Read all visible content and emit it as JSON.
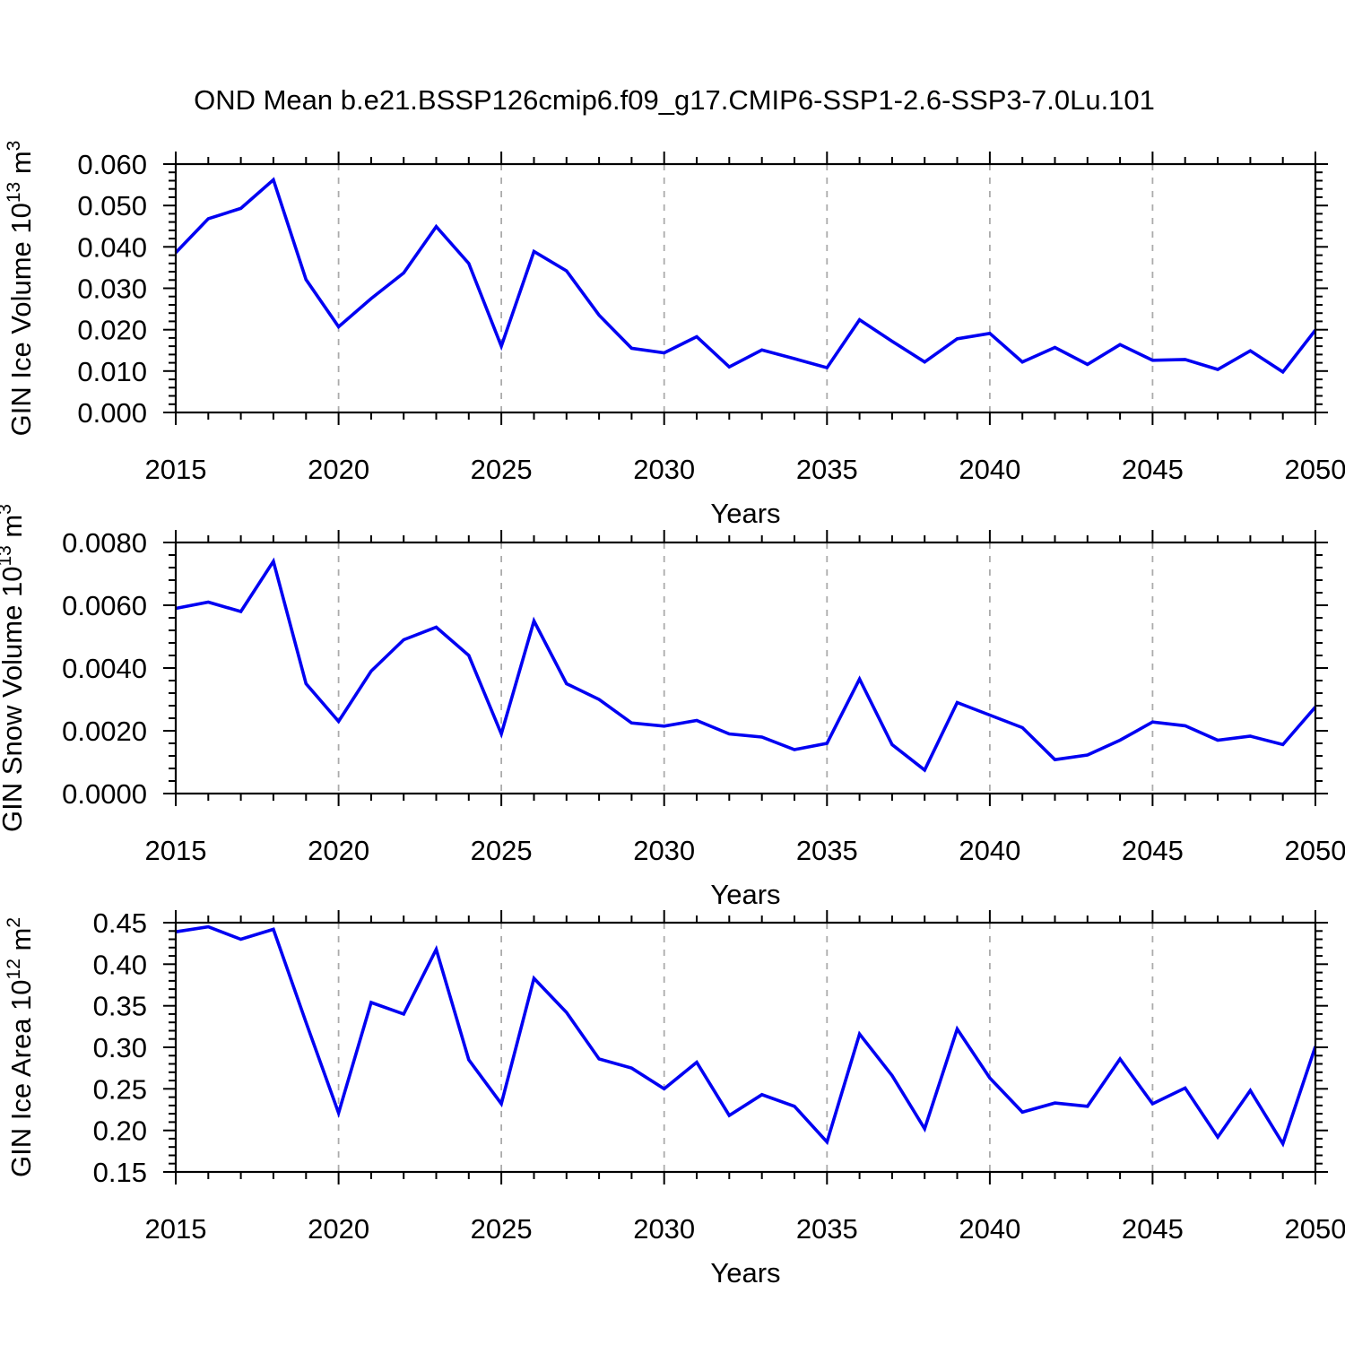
{
  "title": "OND Mean b.e21.BSSP126cmip6.f09_g17.CMIP6-SSP1-2.6-SSP3-7.0Lu.101",
  "chart_data": {
    "type": "line",
    "title": "OND Mean b.e21.BSSP126cmip6.f09_g17.CMIP6-SSP1-2.6-SSP3-7.0Lu.101",
    "xlabel": "Years",
    "legend": "none",
    "grid": "vertical-dashed-only",
    "line_color": "#0000f2",
    "grid_color": "#ababab",
    "axis_color": "#000000",
    "x_range": [
      2015,
      2050
    ],
    "x_major_ticks": [
      2015,
      2020,
      2025,
      2030,
      2035,
      2040,
      2045,
      2050
    ],
    "x_minor_step_years": 1,
    "x_gridline_years": [
      2020,
      2025,
      2030,
      2035,
      2040,
      2045
    ],
    "years": [
      2015,
      2016,
      2017,
      2018,
      2019,
      2020,
      2021,
      2022,
      2023,
      2024,
      2025,
      2026,
      2027,
      2028,
      2029,
      2030,
      2031,
      2032,
      2033,
      2034,
      2035,
      2036,
      2037,
      2038,
      2039,
      2040,
      2041,
      2042,
      2043,
      2044,
      2045,
      2046,
      2047,
      2048,
      2049,
      2050
    ],
    "panels": [
      {
        "name": "gin-ice-volume",
        "ylabel": "GIN Ice Volume 10^13 m^3",
        "ylabel_parts": [
          {
            "t": "GIN Ice Volume 10"
          },
          {
            "t": "13",
            "sup": true
          },
          {
            "t": " m"
          },
          {
            "t": "3",
            "sup": true
          }
        ],
        "ylim": [
          0,
          0.06
        ],
        "y_top_tick": 0.06,
        "y_tick_step": 0.01,
        "y_minor_step": 0.002,
        "decimals": 3,
        "values": [
          0.0386,
          0.0468,
          0.0493,
          0.0562,
          0.0321,
          0.0207,
          0.0275,
          0.0337,
          0.0449,
          0.036,
          0.016,
          0.0389,
          0.0342,
          0.0235,
          0.0155,
          0.0144,
          0.0183,
          0.011,
          0.0151,
          0.013,
          0.0108,
          0.0224,
          0.0172,
          0.0122,
          0.0178,
          0.0191,
          0.0122,
          0.0157,
          0.0116,
          0.0164,
          0.0126,
          0.0128,
          0.0104,
          0.0149,
          0.0098,
          0.0199
        ]
      },
      {
        "name": "gin-snow-volume",
        "ylabel": "GIN Snow Volume 10^13 m^3",
        "ylabel_parts": [
          {
            "t": "GIN Snow Volume 10"
          },
          {
            "t": "13",
            "sup": true
          },
          {
            "t": " m"
          },
          {
            "t": "3",
            "sup": true
          }
        ],
        "ylim": [
          0,
          0.008
        ],
        "y_top_tick": 0.008,
        "y_tick_step": 0.002,
        "y_minor_step": 0.0004,
        "decimals": 4,
        "values": [
          0.0059,
          0.0061,
          0.0058,
          0.0074,
          0.0035,
          0.0023,
          0.0039,
          0.0049,
          0.0053,
          0.0044,
          0.0019,
          0.0055,
          0.0035,
          0.003,
          0.00225,
          0.00215,
          0.00233,
          0.0019,
          0.0018,
          0.0014,
          0.0016,
          0.00365,
          0.00156,
          0.00075,
          0.0029,
          0.0025,
          0.0021,
          0.00108,
          0.00123,
          0.0017,
          0.00228,
          0.00216,
          0.0017,
          0.00183,
          0.00156,
          0.00276
        ]
      },
      {
        "name": "gin-ice-area",
        "ylabel": "GIN Ice Area 10^12 m^2",
        "ylabel_parts": [
          {
            "t": "GIN Ice Area 10"
          },
          {
            "t": "12",
            "sup": true
          },
          {
            "t": " m"
          },
          {
            "t": "2",
            "sup": true
          }
        ],
        "ylim": [
          0.15,
          0.45
        ],
        "y_top_tick": 0.45,
        "y_tick_step": 0.05,
        "y_minor_step": 0.01,
        "decimals": 2,
        "values": [
          0.439,
          0.445,
          0.43,
          0.442,
          0.33,
          0.221,
          0.354,
          0.34,
          0.418,
          0.285,
          0.232,
          0.383,
          0.342,
          0.286,
          0.275,
          0.25,
          0.282,
          0.218,
          0.243,
          0.229,
          0.186,
          0.316,
          0.266,
          0.202,
          0.322,
          0.263,
          0.222,
          0.233,
          0.229,
          0.286,
          0.232,
          0.251,
          0.192,
          0.248,
          0.184,
          0.301
        ]
      }
    ]
  }
}
